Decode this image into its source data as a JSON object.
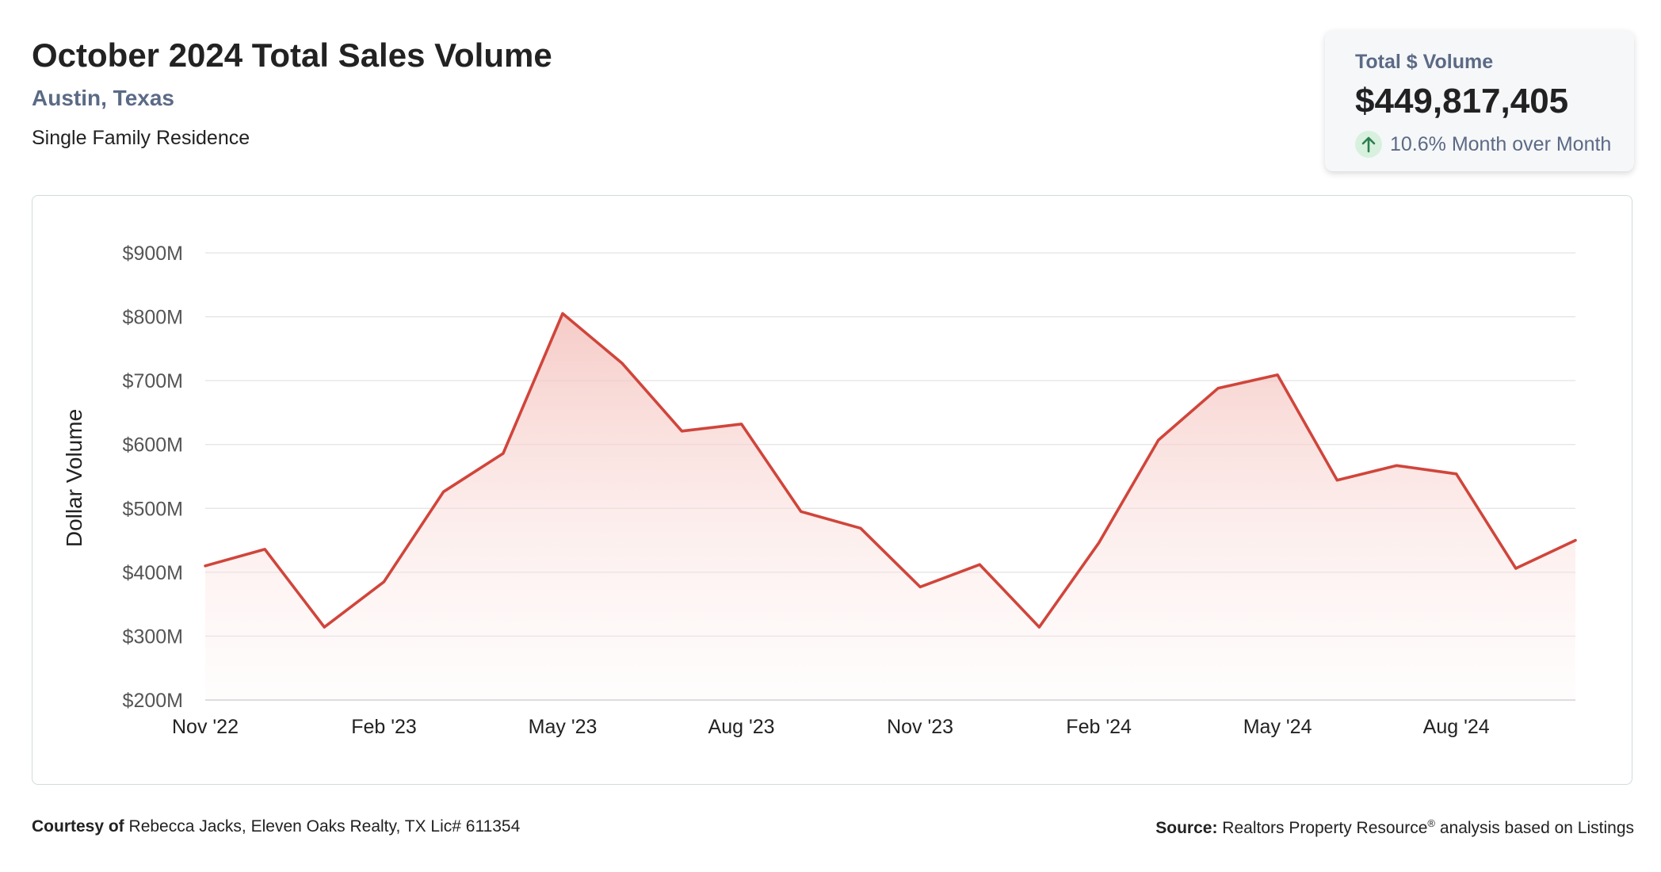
{
  "header": {
    "title": "October 2024 Total Sales Volume",
    "location": "Austin, Texas",
    "property_type": "Single Family Residence"
  },
  "stat_card": {
    "label": "Total $ Volume",
    "value": "$449,817,405",
    "change": "10.6% Month over Month",
    "change_icon": "arrow-up-icon",
    "change_icon_color": "#2e7d4f"
  },
  "chart_data": {
    "type": "area",
    "ylabel": "Dollar Volume",
    "xlabel": "",
    "unit": "$M",
    "ylim": [
      200,
      900
    ],
    "y_ticks": [
      200,
      300,
      400,
      500,
      600,
      700,
      800,
      900
    ],
    "y_tick_labels": [
      "$200M",
      "$300M",
      "$400M",
      "$500M",
      "$600M",
      "$700M",
      "$800M",
      "$900M"
    ],
    "x_tick_labels": [
      "Nov '22",
      "Feb '23",
      "May '23",
      "Aug '23",
      "Nov '23",
      "Feb '24",
      "May '24",
      "Aug '24"
    ],
    "x_tick_indices": [
      0,
      3,
      6,
      9,
      12,
      15,
      18,
      21
    ],
    "categories": [
      "Nov '22",
      "Dec '22",
      "Jan '23",
      "Feb '23",
      "Mar '23",
      "Apr '23",
      "May '23",
      "Jun '23",
      "Jul '23",
      "Aug '23",
      "Sep '23",
      "Oct '23",
      "Nov '23",
      "Dec '23",
      "Jan '24",
      "Feb '24",
      "Mar '24",
      "Apr '24",
      "May '24",
      "Jun '24",
      "Jul '24",
      "Aug '24",
      "Sep '24",
      "Oct '24"
    ],
    "values": [
      410,
      436,
      314,
      385,
      526,
      586,
      805,
      727,
      621,
      632,
      495,
      469,
      377,
      412,
      314,
      446,
      607,
      688,
      709,
      544,
      567,
      554,
      406,
      450
    ],
    "grid": true,
    "line_color": "#d0453b",
    "fill_color": "#f6cfcb"
  },
  "footer": {
    "courtesy_label": "Courtesy of",
    "courtesy_text": "Rebecca Jacks, Eleven Oaks Realty, TX Lic# 611354",
    "source_label": "Source:",
    "source_text_1": "Realtors Property Resource",
    "source_reg": "®",
    "source_text_2": "analysis based on Listings"
  }
}
